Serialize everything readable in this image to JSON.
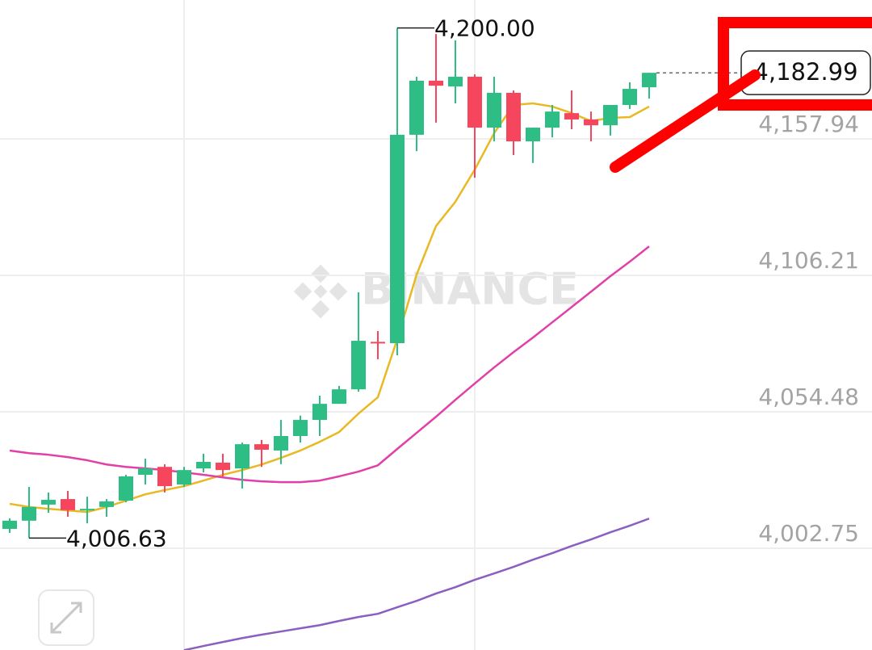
{
  "chart_data": {
    "type": "candlestick",
    "watermark": "BINANCE",
    "up_color": "#2ebd85",
    "down_color": "#f6465d",
    "open": [
      4010.1,
      4013.2,
      4019.3,
      4021.4,
      4017.1,
      4018.4,
      4020.8,
      4030.6,
      4033.6,
      4026.9,
      4033.0,
      4035.2,
      4033.0,
      4042.2,
      4039.8,
      4045.3,
      4051.4,
      4057.5,
      4063.0,
      4081.0,
      4080.5,
      4159.5,
      4180.0,
      4177.8,
      4181.5,
      4162.2,
      4175.4,
      4157.0,
      4162.2,
      4167.7,
      4165.3,
      4163.1,
      4170.8,
      4177.5
    ],
    "high": [
      4014.1,
      4026.0,
      4023.9,
      4024.5,
      4022.3,
      4021.4,
      4030.6,
      4036.7,
      4034.6,
      4033.6,
      4038.6,
      4038.6,
      4042.8,
      4043.8,
      4051.4,
      4053.0,
      4060.6,
      4064.3,
      4099.8,
      4085.1,
      4200.0,
      4181.5,
      4197.7,
      4195.3,
      4182.4,
      4181.5,
      4176.3,
      4162.2,
      4170.8,
      4176.3,
      4168.3,
      4170.8,
      4179.4,
      4182.99
    ],
    "low": [
      4008.6,
      4006.63,
      4016.2,
      4014.7,
      4012.2,
      4014.7,
      4020.2,
      4026.9,
      4023.9,
      4026.0,
      4031.5,
      4030.0,
      4025.4,
      4033.6,
      4034.6,
      4042.8,
      4045.3,
      4057.5,
      4062.1,
      4074.4,
      4075.9,
      4153.3,
      4164.1,
      4171.4,
      4143.2,
      4157.0,
      4151.8,
      4148.8,
      4158.5,
      4161.6,
      4157.0,
      4159.2,
      4169.3,
      4173.2
    ],
    "close": [
      4013.2,
      4018.4,
      4021.1,
      4017.2,
      4017.7,
      4020.5,
      4030.0,
      4033.0,
      4026.3,
      4032.4,
      4035.5,
      4032.4,
      4042.2,
      4040.1,
      4045.3,
      4051.4,
      4057.5,
      4063.0,
      4081.4,
      4080.4,
      4159.5,
      4180.0,
      4178.1,
      4181.5,
      4162.2,
      4175.4,
      4157.0,
      4162.2,
      4168.3,
      4165.3,
      4163.1,
      4170.8,
      4176.9,
      4182.99
    ],
    "lines": [
      {
        "color": "#e8b923",
        "values": [
          4019.6,
          4018.4,
          4017.7,
          4017.1,
          4016.5,
          4018.4,
          4020.8,
          4023.2,
          4024.8,
          4026.3,
          4028.4,
          4030.6,
          4032.4,
          4034.5,
          4037.0,
          4039.8,
          4043.1,
          4046.8,
          4053.8,
          4060.0,
          4082.0,
          4106.5,
          4124.9,
          4134.1,
          4146.3,
          4160.1,
          4170.8,
          4171.4,
          4170.2,
          4167.7,
          4164.7,
          4165.9,
          4166.2,
          4170.2
        ]
      },
      {
        "color": "#e040a8",
        "values": [
          4039.8,
          4038.8,
          4038.2,
          4037.3,
          4036.1,
          4034.5,
          4033.6,
          4033.0,
          4032.4,
          4031.5,
          4030.6,
          4029.6,
          4028.7,
          4028.1,
          4027.8,
          4027.8,
          4028.4,
          4030.0,
          4031.8,
          4034.2,
          4040.4,
          4046.5,
          4052.6,
          4059.0,
          4065.2,
          4071.3,
          4077.1,
          4082.6,
          4088.4,
          4094.2,
          4100.0,
          4105.9,
          4111.4,
          4117.2
        ]
      },
      {
        "color": "#8a5fc0",
        "values": [
          null,
          null,
          null,
          null,
          null,
          null,
          null,
          null,
          null,
          3964.1,
          3965.7,
          3967.2,
          3968.7,
          3970.0,
          3971.2,
          3972.4,
          3973.6,
          3975.2,
          3976.7,
          3977.9,
          3980.4,
          3982.8,
          3985.6,
          3988.0,
          3990.8,
          3993.2,
          3995.7,
          3998.4,
          4000.9,
          4003.6,
          4006.1,
          4008.8,
          4011.3,
          4014.0
        ]
      }
    ],
    "ylim": [
      3964.18,
      4210.59
    ],
    "yticks": [
      {
        "value": 4157.94,
        "label": "4,157.94"
      },
      {
        "value": 4106.21,
        "label": "4,106.21"
      },
      {
        "value": 4054.48,
        "label": "4,054.48"
      },
      {
        "value": 4002.75,
        "label": "4,002.75"
      }
    ],
    "grid": true,
    "high_label": {
      "value": 4200.0,
      "label": "4,200.00"
    },
    "low_label": {
      "value": 4006.63,
      "label": "4,006.63"
    },
    "last_price": {
      "value": 4182.99,
      "label": "4,182.99"
    }
  }
}
